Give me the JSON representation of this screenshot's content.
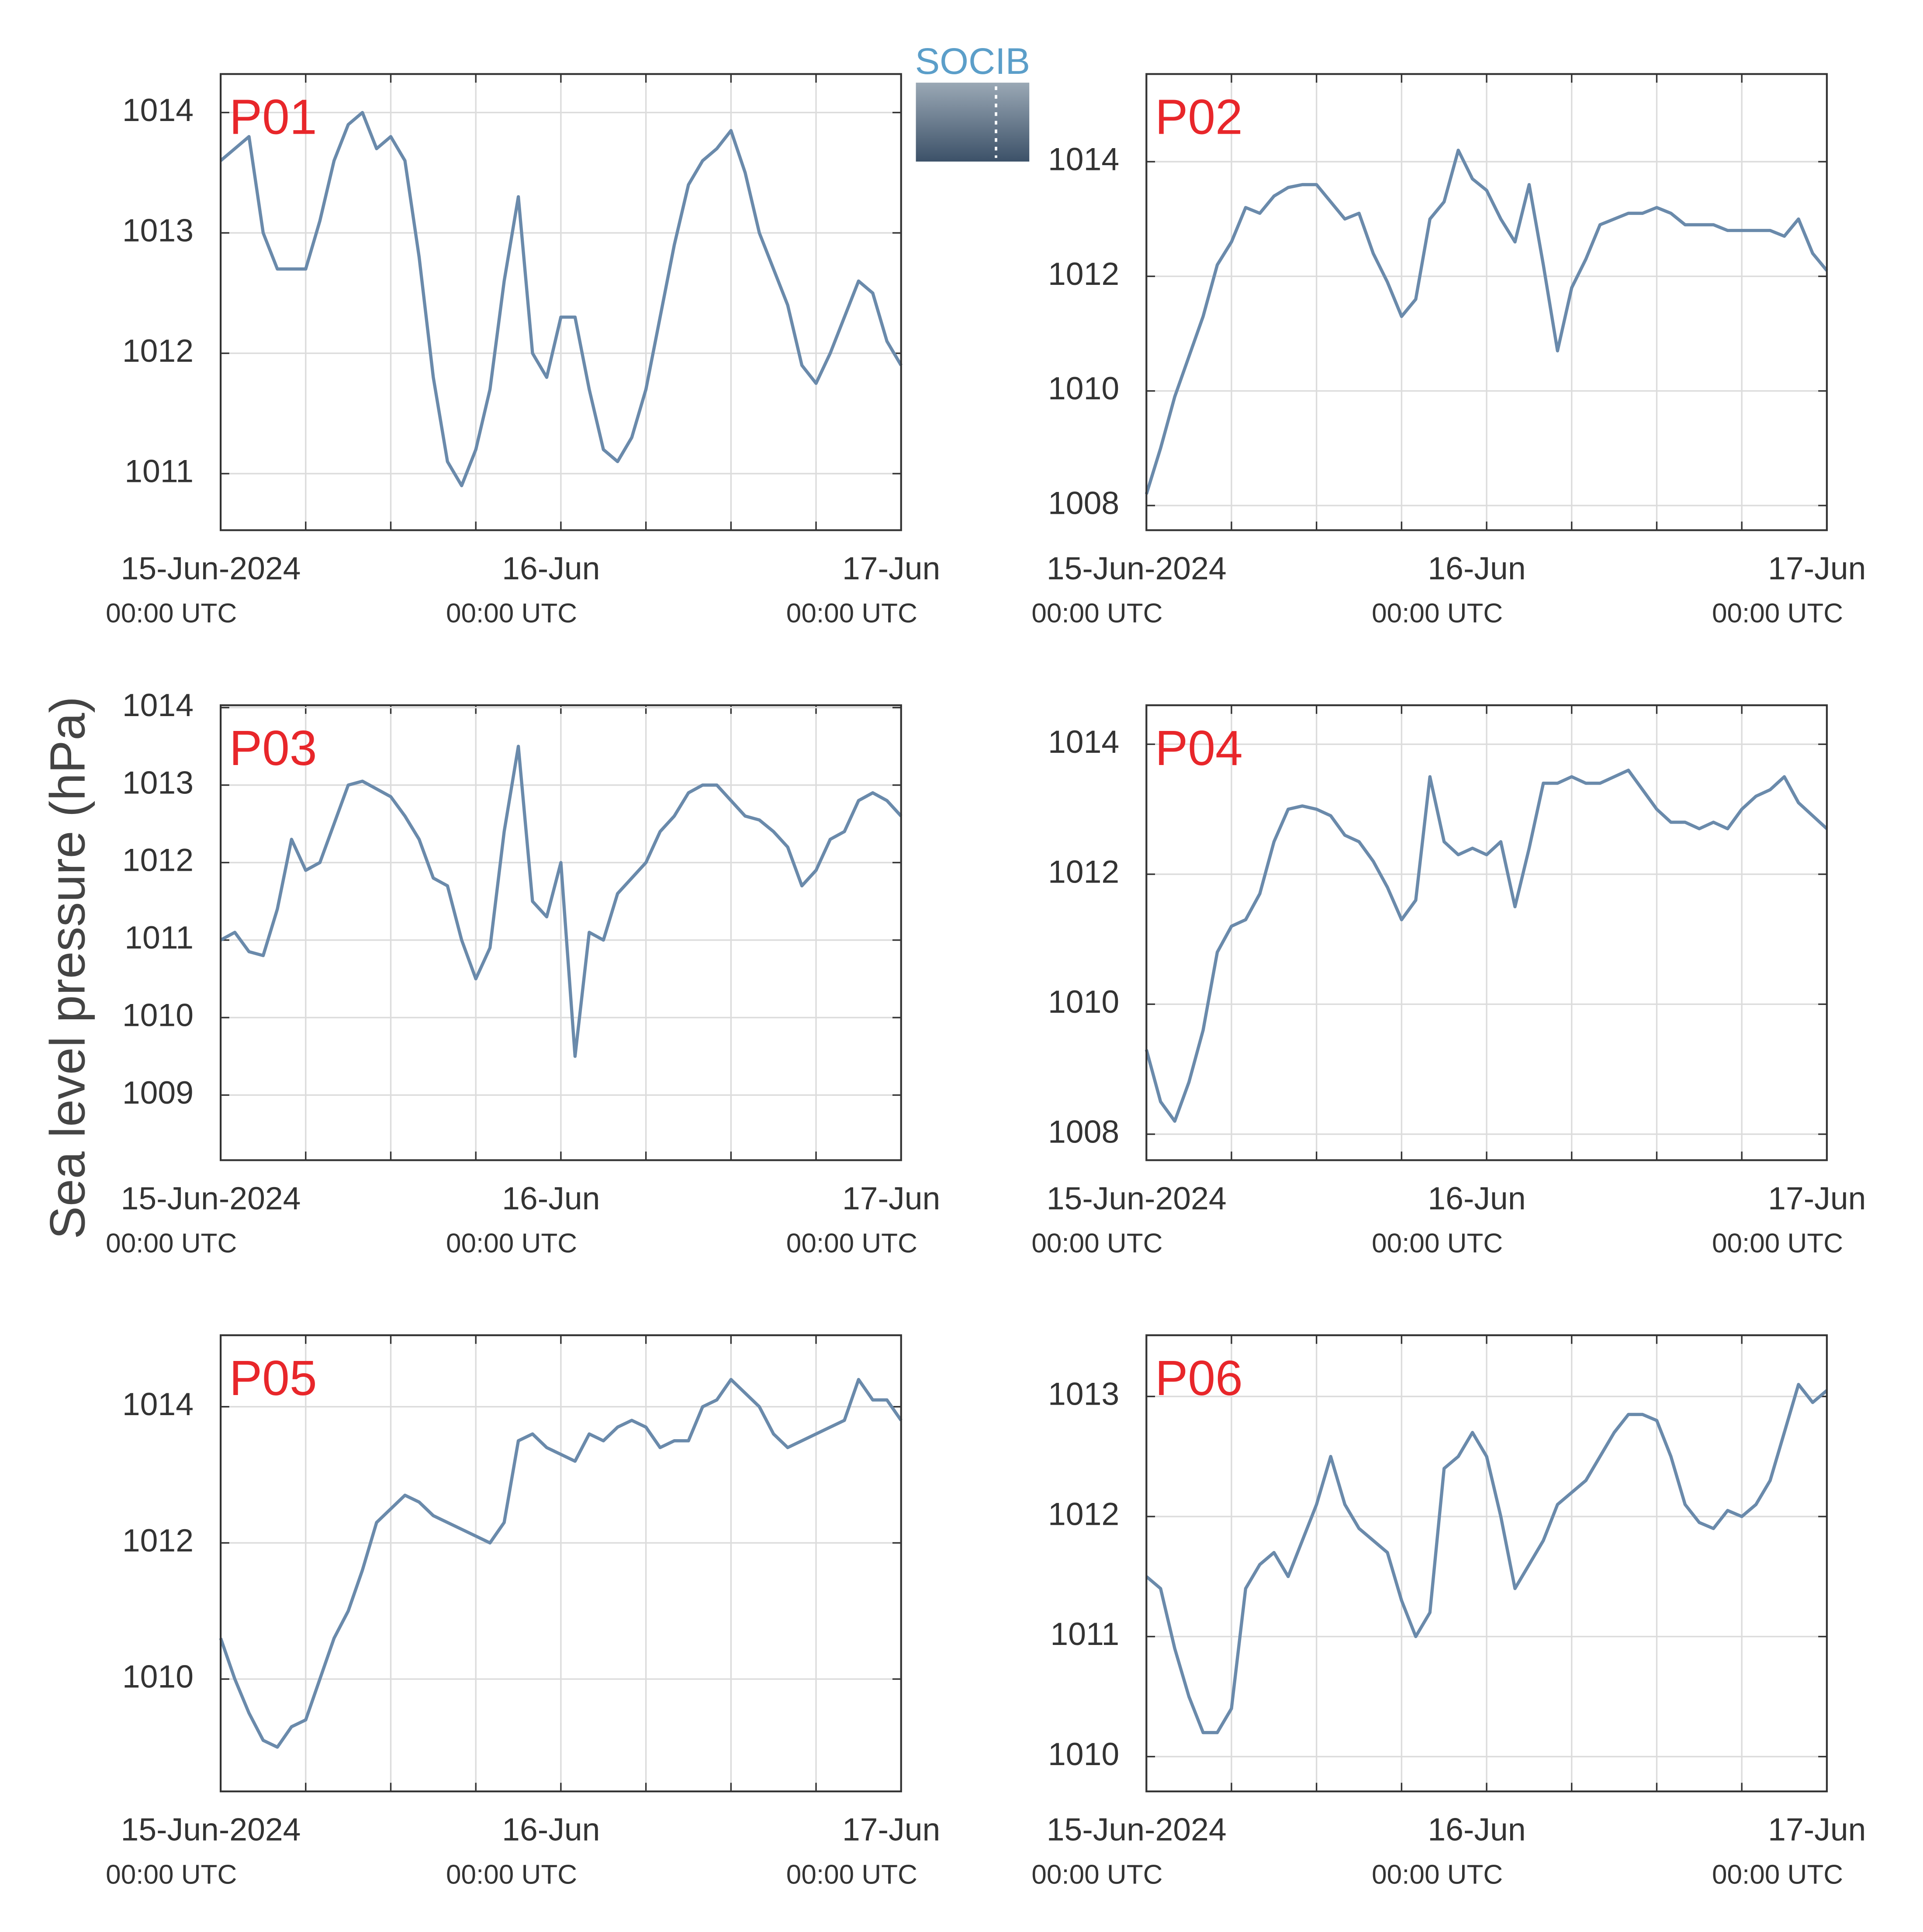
{
  "ylabel": "Sea level pressure (hPa)",
  "logo": "SOCIB",
  "chart_data": [
    {
      "type": "line",
      "title": "P01",
      "color": "#6a8aab",
      "grid": true,
      "x": [
        0,
        1,
        2,
        3,
        4,
        5,
        6,
        7,
        8,
        9,
        10,
        11,
        12,
        13,
        14,
        15,
        16,
        17,
        18,
        19,
        20,
        21,
        22,
        23,
        24,
        25,
        26,
        27,
        28,
        29,
        30,
        31,
        32,
        33,
        34,
        35,
        36,
        37,
        38,
        39,
        40,
        41,
        42,
        43,
        44,
        45,
        46,
        47,
        48
      ],
      "xlim": [
        0,
        48
      ],
      "xticks": [
        {
          "value": 0,
          "label": "15-Jun-2024",
          "sublabel": "00:00 UTC"
        },
        {
          "value": 6,
          "label": null
        },
        {
          "value": 12,
          "label": null
        },
        {
          "value": 18,
          "label": null
        },
        {
          "value": 24,
          "label": "16-Jun",
          "sublabel": "00:00 UTC"
        },
        {
          "value": 30,
          "label": null
        },
        {
          "value": 36,
          "label": null
        },
        {
          "value": 42,
          "label": null
        },
        {
          "value": 48,
          "label": "17-Jun",
          "sublabel": "00:00 UTC"
        }
      ],
      "ylim": [
        1010.53,
        1014.32
      ],
      "yticks": [
        1011,
        1012,
        1013,
        1014
      ],
      "series": [
        {
          "values": [
            1013.6,
            1013.7,
            1013.8,
            1013.0,
            1012.7,
            1012.7,
            1012.7,
            1013.1,
            1013.6,
            1013.9,
            1014.0,
            1013.7,
            1013.8,
            1013.6,
            1012.8,
            1011.8,
            1011.1,
            1010.9,
            1011.2,
            1011.7,
            1012.6,
            1013.3,
            1012.0,
            1011.8,
            1012.3,
            1012.3,
            1011.7,
            1011.2,
            1011.1,
            1011.3,
            1011.7,
            1012.3,
            1012.9,
            1013.4,
            1013.6,
            1013.7,
            1013.85,
            1013.5,
            1013.0,
            1012.7,
            1012.4,
            1011.9,
            1011.75,
            1012.0,
            1012.3,
            1012.6,
            1012.5,
            1012.1,
            1011.9
          ]
        }
      ]
    },
    {
      "type": "line",
      "title": "P02",
      "color": "#6a8aab",
      "grid": true,
      "x": [
        0,
        1,
        2,
        3,
        4,
        5,
        6,
        7,
        8,
        9,
        10,
        11,
        12,
        13,
        14,
        15,
        16,
        17,
        18,
        19,
        20,
        21,
        22,
        23,
        24,
        25,
        26,
        27,
        28,
        29,
        30,
        31,
        32,
        33,
        34,
        35,
        36,
        37,
        38,
        39,
        40,
        41,
        42,
        43,
        44,
        45,
        46,
        47,
        48
      ],
      "xlim": [
        0,
        48
      ],
      "xticks": [
        {
          "value": 0,
          "label": "15-Jun-2024",
          "sublabel": "00:00 UTC"
        },
        {
          "value": 6,
          "label": null
        },
        {
          "value": 12,
          "label": null
        },
        {
          "value": 18,
          "label": null
        },
        {
          "value": 24,
          "label": "16-Jun",
          "sublabel": "00:00 UTC"
        },
        {
          "value": 30,
          "label": null
        },
        {
          "value": 36,
          "label": null
        },
        {
          "value": 42,
          "label": null
        },
        {
          "value": 48,
          "label": "17-Jun",
          "sublabel": "00:00 UTC"
        }
      ],
      "ylim": [
        1007.57,
        1015.53
      ],
      "yticks": [
        1008,
        1010,
        1012,
        1014
      ],
      "series": [
        {
          "values": [
            1008.2,
            1009.0,
            1009.9,
            1010.6,
            1011.3,
            1012.2,
            1012.6,
            1013.2,
            1013.1,
            1013.4,
            1013.55,
            1013.6,
            1013.6,
            1013.3,
            1013.0,
            1013.1,
            1012.4,
            1011.9,
            1011.3,
            1011.6,
            1013.0,
            1013.3,
            1014.2,
            1013.7,
            1013.5,
            1013.0,
            1012.6,
            1013.6,
            1012.2,
            1010.7,
            1011.8,
            1012.3,
            1012.9,
            1013.0,
            1013.1,
            1013.1,
            1013.2,
            1013.1,
            1012.9,
            1012.9,
            1012.9,
            1012.8,
            1012.8,
            1012.8,
            1012.8,
            1012.7,
            1013.0,
            1012.4,
            1012.1
          ]
        }
      ]
    },
    {
      "type": "line",
      "title": "P03",
      "color": "#6a8aab",
      "grid": true,
      "x": [
        0,
        1,
        2,
        3,
        4,
        5,
        6,
        7,
        8,
        9,
        10,
        11,
        12,
        13,
        14,
        15,
        16,
        17,
        18,
        19,
        20,
        21,
        22,
        23,
        24,
        25,
        26,
        27,
        28,
        29,
        30,
        31,
        32,
        33,
        34,
        35,
        36,
        37,
        38,
        39,
        40,
        41,
        42,
        43,
        44,
        45,
        46,
        47,
        48
      ],
      "xlim": [
        0,
        48
      ],
      "xticks": [
        {
          "value": 0,
          "label": "15-Jun-2024",
          "sublabel": "00:00 UTC"
        },
        {
          "value": 6,
          "label": null
        },
        {
          "value": 12,
          "label": null
        },
        {
          "value": 18,
          "label": null
        },
        {
          "value": 24,
          "label": "16-Jun",
          "sublabel": "00:00 UTC"
        },
        {
          "value": 30,
          "label": null
        },
        {
          "value": 36,
          "label": null
        },
        {
          "value": 42,
          "label": null
        },
        {
          "value": 48,
          "label": "17-Jun",
          "sublabel": "00:00 UTC"
        }
      ],
      "ylim": [
        1008.16,
        1014.03
      ],
      "yticks": [
        1009,
        1010,
        1011,
        1012,
        1013,
        1014
      ],
      "series": [
        {
          "values": [
            1011.0,
            1011.1,
            1010.85,
            1010.8,
            1011.4,
            1012.3,
            1011.9,
            1012.0,
            1012.5,
            1013.0,
            1013.05,
            1012.95,
            1012.85,
            1012.6,
            1012.3,
            1011.8,
            1011.7,
            1011.0,
            1010.5,
            1010.9,
            1012.4,
            1013.5,
            1011.5,
            1011.3,
            1012.0,
            1009.5,
            1011.1,
            1011.0,
            1011.6,
            1011.8,
            1012.0,
            1012.4,
            1012.6,
            1012.9,
            1013.0,
            1013.0,
            1012.8,
            1012.6,
            1012.55,
            1012.4,
            1012.2,
            1011.7,
            1011.9,
            1012.3,
            1012.4,
            1012.8,
            1012.9,
            1012.8,
            1012.6
          ]
        }
      ]
    },
    {
      "type": "line",
      "title": "P04",
      "color": "#6a8aab",
      "grid": true,
      "x": [
        0,
        1,
        2,
        3,
        4,
        5,
        6,
        7,
        8,
        9,
        10,
        11,
        12,
        13,
        14,
        15,
        16,
        17,
        18,
        19,
        20,
        21,
        22,
        23,
        24,
        25,
        26,
        27,
        28,
        29,
        30,
        31,
        32,
        33,
        34,
        35,
        36,
        37,
        38,
        39,
        40,
        41,
        42,
        43,
        44,
        45,
        46,
        47,
        48
      ],
      "xlim": [
        0,
        48
      ],
      "xticks": [
        {
          "value": 0,
          "label": "15-Jun-2024",
          "sublabel": "00:00 UTC"
        },
        {
          "value": 6,
          "label": null
        },
        {
          "value": 12,
          "label": null
        },
        {
          "value": 18,
          "label": null
        },
        {
          "value": 24,
          "label": "16-Jun",
          "sublabel": "00:00 UTC"
        },
        {
          "value": 30,
          "label": null
        },
        {
          "value": 36,
          "label": null
        },
        {
          "value": 42,
          "label": null
        },
        {
          "value": 48,
          "label": "17-Jun",
          "sublabel": "00:00 UTC"
        }
      ],
      "ylim": [
        1007.6,
        1014.6
      ],
      "yticks": [
        1008,
        1010,
        1012,
        1014
      ],
      "series": [
        {
          "values": [
            1009.3,
            1008.5,
            1008.2,
            1008.8,
            1009.6,
            1010.8,
            1011.2,
            1011.3,
            1011.7,
            1012.5,
            1013.0,
            1013.05,
            1013.0,
            1012.9,
            1012.6,
            1012.5,
            1012.2,
            1011.8,
            1011.3,
            1011.6,
            1013.5,
            1012.5,
            1012.3,
            1012.4,
            1012.3,
            1012.5,
            1011.5,
            1012.4,
            1013.4,
            1013.4,
            1013.5,
            1013.4,
            1013.4,
            1013.5,
            1013.6,
            1013.3,
            1013.0,
            1012.8,
            1012.8,
            1012.7,
            1012.8,
            1012.7,
            1013.0,
            1013.2,
            1013.3,
            1013.5,
            1013.1,
            1012.9,
            1012.7
          ]
        }
      ]
    },
    {
      "type": "line",
      "title": "P05",
      "color": "#6a8aab",
      "grid": true,
      "x": [
        0,
        1,
        2,
        3,
        4,
        5,
        6,
        7,
        8,
        9,
        10,
        11,
        12,
        13,
        14,
        15,
        16,
        17,
        18,
        19,
        20,
        21,
        22,
        23,
        24,
        25,
        26,
        27,
        28,
        29,
        30,
        31,
        32,
        33,
        34,
        35,
        36,
        37,
        38,
        39,
        40,
        41,
        42,
        43,
        44,
        45,
        46,
        47,
        48
      ],
      "xlim": [
        0,
        48
      ],
      "xticks": [
        {
          "value": 0,
          "label": "15-Jun-2024",
          "sublabel": "00:00 UTC"
        },
        {
          "value": 6,
          "label": null
        },
        {
          "value": 12,
          "label": null
        },
        {
          "value": 18,
          "label": null
        },
        {
          "value": 24,
          "label": "16-Jun",
          "sublabel": "00:00 UTC"
        },
        {
          "value": 30,
          "label": null
        },
        {
          "value": 36,
          "label": null
        },
        {
          "value": 42,
          "label": null
        },
        {
          "value": 48,
          "label": "17-Jun",
          "sublabel": "00:00 UTC"
        }
      ],
      "ylim": [
        1008.35,
        1015.05
      ],
      "yticks": [
        1010,
        1012,
        1014
      ],
      "series": [
        {
          "values": [
            1010.6,
            1010.0,
            1009.5,
            1009.1,
            1009.0,
            1009.3,
            1009.4,
            1010.0,
            1010.6,
            1011.0,
            1011.6,
            1012.3,
            1012.5,
            1012.7,
            1012.6,
            1012.4,
            1012.3,
            1012.2,
            1012.1,
            1012.0,
            1012.3,
            1013.5,
            1013.6,
            1013.4,
            1013.3,
            1013.2,
            1013.6,
            1013.5,
            1013.7,
            1013.8,
            1013.7,
            1013.4,
            1013.5,
            1013.5,
            1014.0,
            1014.1,
            1014.4,
            1014.2,
            1014.0,
            1013.6,
            1013.4,
            1013.5,
            1013.6,
            1013.7,
            1013.8,
            1014.4,
            1014.1,
            1014.1,
            1013.8
          ]
        }
      ]
    },
    {
      "type": "line",
      "title": "P06",
      "color": "#6a8aab",
      "grid": true,
      "x": [
        0,
        1,
        2,
        3,
        4,
        5,
        6,
        7,
        8,
        9,
        10,
        11,
        12,
        13,
        14,
        15,
        16,
        17,
        18,
        19,
        20,
        21,
        22,
        23,
        24,
        25,
        26,
        27,
        28,
        29,
        30,
        31,
        32,
        33,
        34,
        35,
        36,
        37,
        38,
        39,
        40,
        41,
        42,
        43,
        44,
        45,
        46,
        47,
        48
      ],
      "xlim": [
        0,
        48
      ],
      "xticks": [
        {
          "value": 0,
          "label": "15-Jun-2024",
          "sublabel": "00:00 UTC"
        },
        {
          "value": 6,
          "label": null
        },
        {
          "value": 12,
          "label": null
        },
        {
          "value": 18,
          "label": null
        },
        {
          "value": 24,
          "label": "16-Jun",
          "sublabel": "00:00 UTC"
        },
        {
          "value": 30,
          "label": null
        },
        {
          "value": 36,
          "label": null
        },
        {
          "value": 42,
          "label": null
        },
        {
          "value": 48,
          "label": "17-Jun",
          "sublabel": "00:00 UTC"
        }
      ],
      "ylim": [
        1009.71,
        1013.51
      ],
      "yticks": [
        1010,
        1011,
        1012,
        1013
      ],
      "series": [
        {
          "values": [
            1011.5,
            1011.4,
            1010.9,
            1010.5,
            1010.2,
            1010.2,
            1010.4,
            1011.4,
            1011.6,
            1011.7,
            1011.5,
            1011.8,
            1012.1,
            1012.5,
            1012.1,
            1011.9,
            1011.8,
            1011.7,
            1011.3,
            1011.0,
            1011.2,
            1012.4,
            1012.5,
            1012.7,
            1012.5,
            1012.0,
            1011.4,
            1011.6,
            1011.8,
            1012.1,
            1012.2,
            1012.3,
            1012.5,
            1012.7,
            1012.85,
            1012.85,
            1012.8,
            1012.5,
            1012.1,
            1011.95,
            1011.9,
            1012.05,
            1012.0,
            1012.1,
            1012.3,
            1012.7,
            1013.1,
            1012.95,
            1013.05
          ]
        }
      ]
    }
  ]
}
